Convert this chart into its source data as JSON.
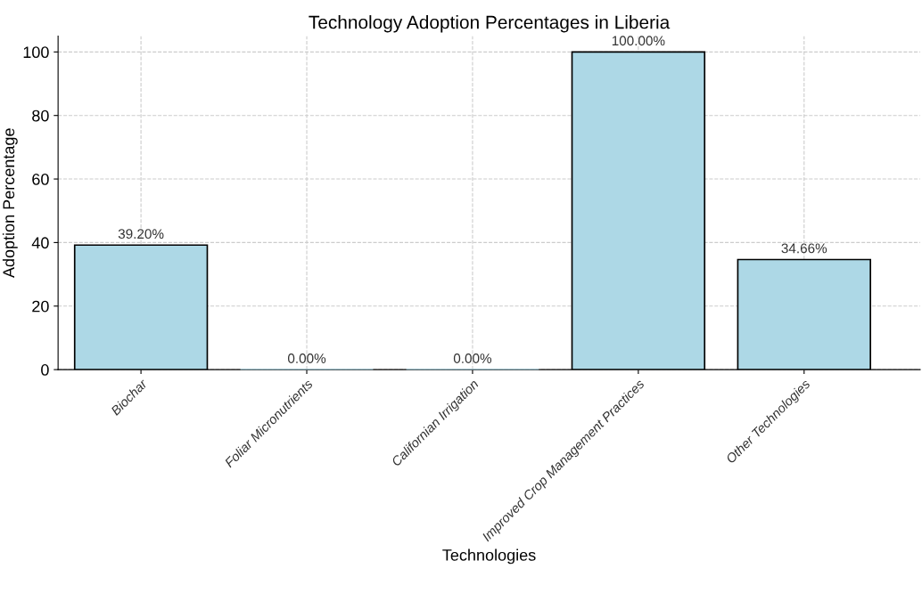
{
  "chart_data": {
    "type": "bar",
    "title": "Technology Adoption Percentages in Liberia",
    "xlabel": "Technologies",
    "ylabel": "Adoption Percentage",
    "categories": [
      "Biochar",
      "Foliar Micronutrients",
      "Californian Irrigation",
      "Improved Crop Management Practices",
      "Other Technologies"
    ],
    "values": [
      39.2,
      0,
      0,
      100,
      34.66
    ],
    "value_labels": [
      "39.20%",
      "0.00%",
      "0.00%",
      "100.00%",
      "34.66%"
    ],
    "color": "#add8e6",
    "ylim": [
      0,
      105
    ],
    "yticks": [
      0,
      20,
      40,
      60,
      80,
      100
    ],
    "grid": true
  }
}
